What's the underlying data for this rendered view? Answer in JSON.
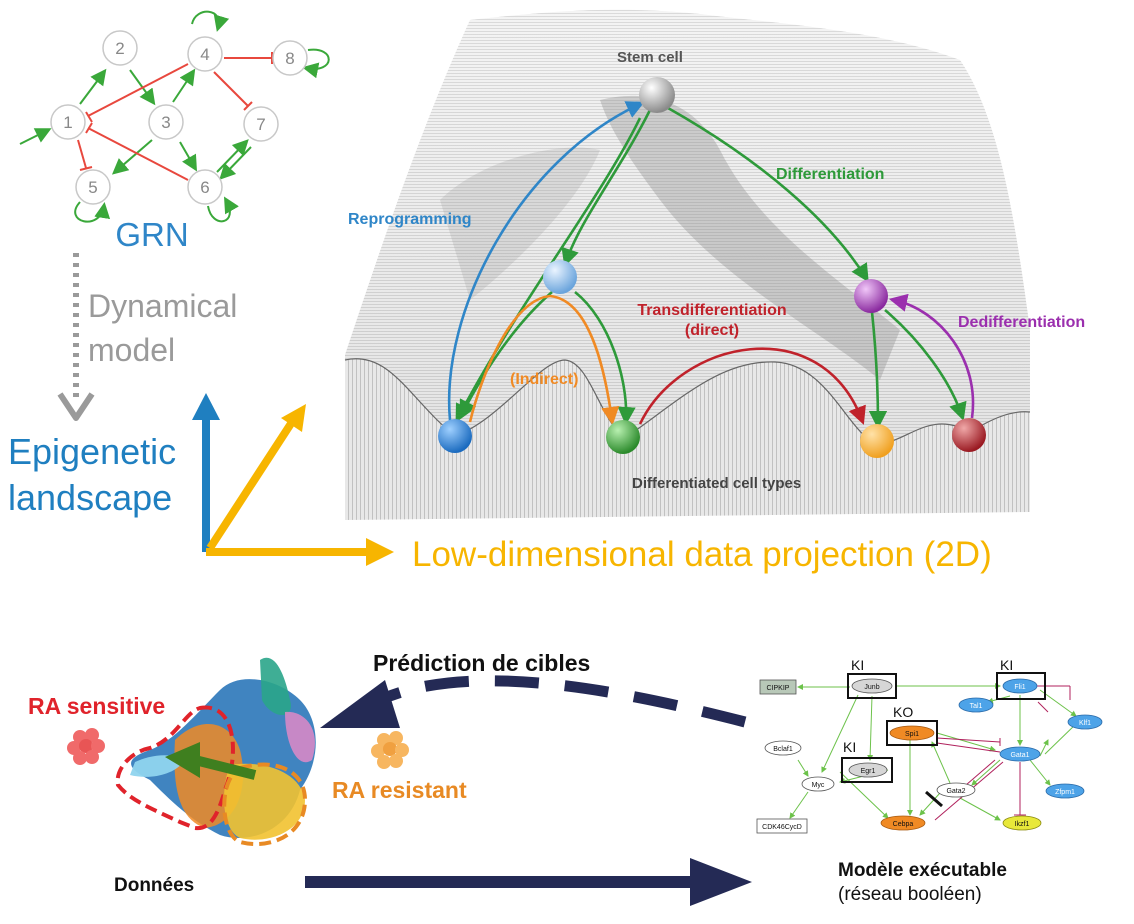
{
  "grn": {
    "nodes": [
      "1",
      "2",
      "3",
      "4",
      "5",
      "6",
      "7",
      "8"
    ],
    "title": "GRN",
    "dynamical_model": [
      "Dynamical",
      "model"
    ]
  },
  "axes": {
    "vertical_label": [
      "Epigenetic",
      "landscape"
    ],
    "horizontal_label": "Low-dimensional data projection (2D)"
  },
  "landscape": {
    "stem_cell": "Stem cell",
    "differentiation": "Differentiation",
    "reprogramming": "Reprogramming",
    "transdiff": [
      "Transdifferentiation",
      "(direct)"
    ],
    "indirect": "(Indirect)",
    "dedifferentiation": "Dedifferentiation",
    "differentiated_types": "Differentiated cell types",
    "colors": {
      "differentiation": "#2e9a3a",
      "reprogramming": "#2f86c8",
      "transdiff": "#c0222b",
      "indirect": "#f08a24",
      "dedifferentiation": "#9b2fae"
    }
  },
  "bottom": {
    "ra_sensitive": "RA sensitive",
    "ra_resistant": "RA resistant",
    "prediction": "Prédiction de cibles",
    "donnees": "Données",
    "modele_title": "Modèle exécutable",
    "modele_sub": "(réseau booléen)"
  },
  "boolean_network": {
    "KI_1": "KI",
    "KI_2": "KI",
    "KI_3": "KI",
    "KO": "KO",
    "nodes": {
      "cipkip": "CIPKIP",
      "junb": "Junb",
      "fli1": "Fli1",
      "tal1": "Tal1",
      "klf1": "Klf1",
      "spi1": "Spi1",
      "gata1": "Gata1",
      "bclaf1": "Bclaf1",
      "egr1": "Egr1",
      "myc": "Myc",
      "gata2": "Gata2",
      "zfpm1": "Zfpm1",
      "cdk": "CDK46CycD",
      "cebpa": "Cebpa",
      "ikzf1": "Ikzf1"
    }
  }
}
